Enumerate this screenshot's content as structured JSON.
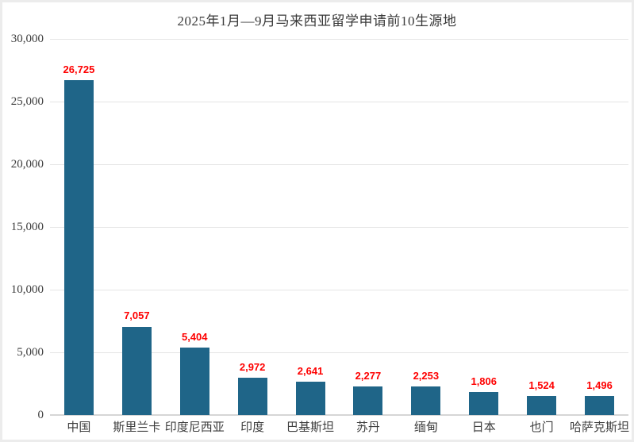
{
  "title": "2025年1月—9月马来西亚留学申请前10生源地",
  "colors": {
    "bar": "#1f6588",
    "value_label": "#fe0000",
    "axis_text": "#3d3d3d",
    "gridline": "#e5e5e5",
    "zero_axis": "#d6d6d6",
    "frame_border": "#ececec",
    "background": "#ffffff"
  },
  "chart_data": {
    "type": "bar",
    "title": "2025年1月—9月马来西亚留学申请前10生源地",
    "categories": [
      "中国",
      "斯里兰卡",
      "印度尼西亚",
      "印度",
      "巴基斯坦",
      "苏丹",
      "缅甸",
      "日本",
      "也门",
      "哈萨克斯坦"
    ],
    "values": [
      26725,
      7057,
      5404,
      2972,
      2641,
      2277,
      2253,
      1806,
      1524,
      1496
    ],
    "data_labels": [
      "26,725",
      "7,057",
      "5,404",
      "2,972",
      "2,641",
      "2,277",
      "2,253",
      "1,806",
      "1,524",
      "1,496"
    ],
    "xlabel": "",
    "ylabel": "",
    "ylim": [
      0,
      30000
    ],
    "ytick_interval": 5000,
    "yticks": [
      {
        "value": 0,
        "label": "0"
      },
      {
        "value": 5000,
        "label": "5,000"
      },
      {
        "value": 10000,
        "label": "10,000"
      },
      {
        "value": 15000,
        "label": "15,000"
      },
      {
        "value": 20000,
        "label": "20,000"
      },
      {
        "value": 25000,
        "label": "25,000"
      },
      {
        "value": 30000,
        "label": "30,000"
      }
    ],
    "grid": true,
    "legend_position": "none",
    "data_label_position": "above-bar"
  }
}
